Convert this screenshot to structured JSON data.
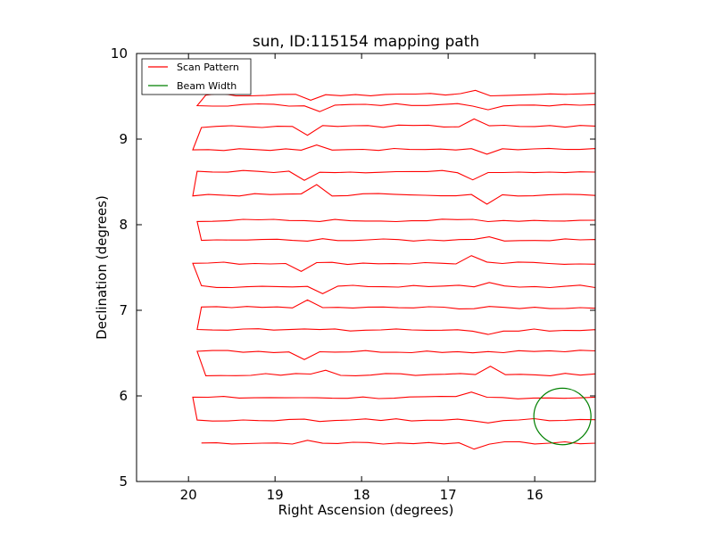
{
  "chart_data": {
    "type": "line",
    "title": "sun, ID:115154 mapping path",
    "xlabel": "Right Ascension (degrees)",
    "ylabel": "Declination (degrees)",
    "xlim": [
      20.6,
      15.3
    ],
    "ylim": [
      5,
      10
    ],
    "x_inverted": true,
    "xticks": [
      "20",
      "19",
      "18",
      "17",
      "16"
    ],
    "yticks": [
      "5",
      "6",
      "7",
      "8",
      "9",
      "10"
    ],
    "grid": false,
    "legend": {
      "placement": "top-left",
      "entries": [
        {
          "label": "Scan Pattern",
          "color": "#ff0000"
        },
        {
          "label": "Beam Width",
          "color": "#008000"
        }
      ]
    },
    "series": [
      {
        "name": "Scan Pattern",
        "color": "#ff0000",
        "kind": "raster-scan",
        "rows": [
          {
            "dec": 5.45,
            "ra_start": 19.85,
            "ra_end": 15.3
          },
          {
            "dec": 5.72,
            "ra_start": 19.9,
            "ra_end": 15.3
          },
          {
            "dec": 5.98,
            "ra_start": 19.95,
            "ra_end": 15.3
          },
          {
            "dec": 6.25,
            "ra_start": 19.8,
            "ra_end": 15.3
          },
          {
            "dec": 6.52,
            "ra_start": 19.9,
            "ra_end": 15.3
          },
          {
            "dec": 6.77,
            "ra_start": 19.9,
            "ra_end": 15.3
          },
          {
            "dec": 7.03,
            "ra_start": 19.85,
            "ra_end": 15.3
          },
          {
            "dec": 7.28,
            "ra_start": 19.85,
            "ra_end": 15.3
          },
          {
            "dec": 7.55,
            "ra_start": 19.95,
            "ra_end": 15.3
          },
          {
            "dec": 7.82,
            "ra_start": 19.85,
            "ra_end": 15.3
          },
          {
            "dec": 8.05,
            "ra_start": 19.9,
            "ra_end": 15.3
          },
          {
            "dec": 8.35,
            "ra_start": 19.95,
            "ra_end": 15.3
          },
          {
            "dec": 8.62,
            "ra_start": 19.9,
            "ra_end": 15.3
          },
          {
            "dec": 8.88,
            "ra_start": 19.95,
            "ra_end": 15.3
          },
          {
            "dec": 9.15,
            "ra_start": 19.85,
            "ra_end": 15.3
          },
          {
            "dec": 9.4,
            "ra_start": 19.9,
            "ra_end": 15.3
          },
          {
            "dec": 9.52,
            "ra_start": 19.8,
            "ra_end": 15.3
          }
        ]
      },
      {
        "name": "Beam Width",
        "color": "#008000",
        "kind": "circle",
        "center": [
          15.68,
          5.76
        ],
        "radius": 0.33
      }
    ]
  }
}
